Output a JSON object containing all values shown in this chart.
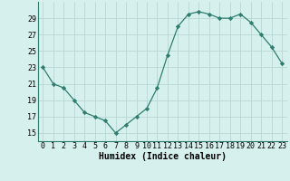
{
  "x": [
    0,
    1,
    2,
    3,
    4,
    5,
    6,
    7,
    8,
    9,
    10,
    11,
    12,
    13,
    14,
    15,
    16,
    17,
    18,
    19,
    20,
    21,
    22,
    23
  ],
  "y": [
    23,
    21,
    20.5,
    19,
    17.5,
    17,
    16.5,
    15,
    16,
    17,
    18,
    20.5,
    24.5,
    28,
    29.5,
    29.8,
    29.5,
    29,
    29,
    29.5,
    28.5,
    27,
    25.5,
    23.5
  ],
  "line_color": "#2e7d6e",
  "marker": "D",
  "marker_size": 2.2,
  "bg_color": "#d6f0ed",
  "grid_color": "#b8d8d4",
  "xlabel": "Humidex (Indice chaleur)",
  "ylim": [
    14,
    31
  ],
  "xlim": [
    -0.5,
    23.5
  ],
  "yticks": [
    15,
    17,
    19,
    21,
    23,
    25,
    27,
    29
  ],
  "xticks": [
    0,
    1,
    2,
    3,
    4,
    5,
    6,
    7,
    8,
    9,
    10,
    11,
    12,
    13,
    14,
    15,
    16,
    17,
    18,
    19,
    20,
    21,
    22,
    23
  ],
  "label_fontsize": 7,
  "tick_fontsize": 6
}
